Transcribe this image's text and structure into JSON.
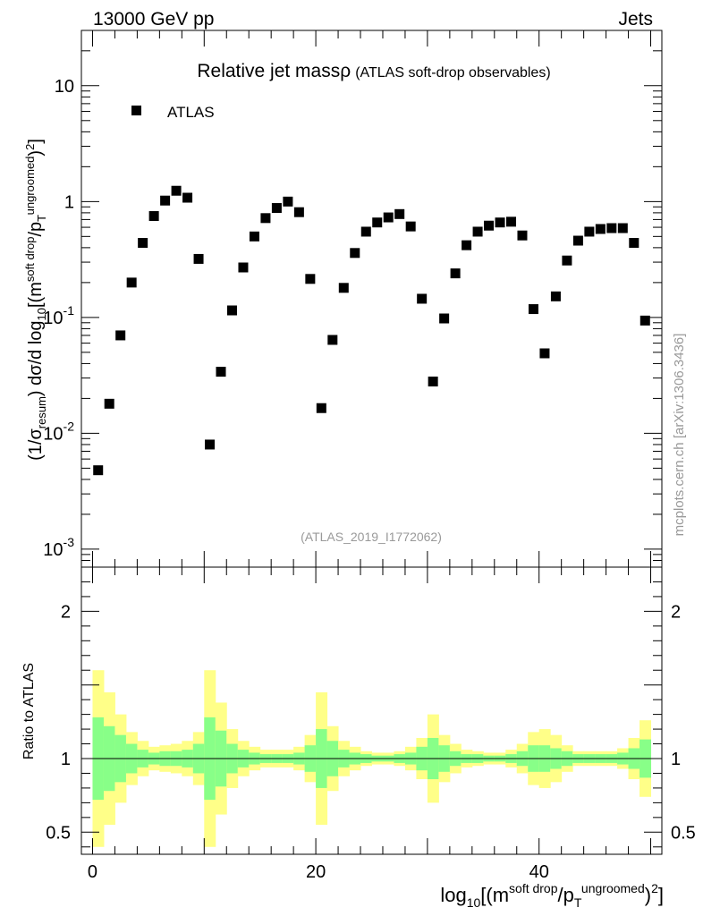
{
  "header": {
    "energy_label": "13000 GeV pp",
    "category_label": "Jets",
    "watermark": "mcplots.cern.ch [arXiv:1306.3436]"
  },
  "chart_data": [
    {
      "type": "scatter",
      "title": "Relative jet massρ",
      "subtitle": "(ATLAS soft-drop observables)",
      "analysis_id": "(ATLAS_2019_I1772062)",
      "xlabel": "log10[(m^{soft drop}/p_T^{ungroomed})^2]",
      "ylabel": "(1/σ_resum) dσ/d log10[(m^{soft drop}/p_T^{ungroomed})^2]",
      "yscale": "log",
      "xlim": [
        -1,
        51
      ],
      "ylim": [
        0.0007,
        30
      ],
      "ytick_labels": [
        "10^-3",
        "10^-2",
        "10^-1",
        "1",
        "10"
      ],
      "legend": {
        "placement": "top-left",
        "entries": [
          "ATLAS"
        ]
      },
      "series": [
        {
          "name": "ATLAS",
          "color": "#000000",
          "marker": "square",
          "x": [
            0.5,
            1.5,
            2.5,
            3.5,
            4.5,
            5.5,
            6.5,
            7.5,
            8.5,
            9.5,
            10.5,
            11.5,
            12.5,
            13.5,
            14.5,
            15.5,
            16.5,
            17.5,
            18.5,
            19.5,
            20.5,
            21.5,
            22.5,
            23.5,
            24.5,
            25.5,
            26.5,
            27.5,
            28.5,
            29.5,
            30.5,
            31.5,
            32.5,
            33.5,
            34.5,
            35.5,
            36.5,
            37.5,
            38.5,
            39.5,
            40.5,
            41.5,
            42.5,
            43.5,
            44.5,
            45.5,
            46.5,
            47.5,
            48.5,
            49.5
          ],
          "y": [
            0.0048,
            0.018,
            0.07,
            0.2,
            0.44,
            0.75,
            1.02,
            1.24,
            1.08,
            0.32,
            0.008,
            0.034,
            0.115,
            0.27,
            0.5,
            0.72,
            0.88,
            1.0,
            0.81,
            0.215,
            0.0165,
            0.064,
            0.18,
            0.36,
            0.55,
            0.66,
            0.73,
            0.78,
            0.61,
            0.145,
            0.028,
            0.098,
            0.24,
            0.42,
            0.55,
            0.62,
            0.66,
            0.67,
            0.51,
            0.118,
            0.049,
            0.152,
            0.31,
            0.46,
            0.55,
            0.58,
            0.59,
            0.59,
            0.44,
            0.094
          ]
        }
      ]
    },
    {
      "type": "bar",
      "ylabel": "Ratio to ATLAS",
      "ylim": [
        0.35,
        2.3
      ],
      "ytick_labels": [
        "0.5",
        "1",
        "2"
      ],
      "xtick_labels": [
        "0",
        "20",
        "40"
      ],
      "reference_line": 1,
      "band_colors": {
        "outer": "#ffff88",
        "inner": "#88ff88"
      },
      "bins_x": [
        0.5,
        1.5,
        2.5,
        3.5,
        4.5,
        5.5,
        6.5,
        7.5,
        8.5,
        9.5,
        10.5,
        11.5,
        12.5,
        13.5,
        14.5,
        15.5,
        16.5,
        17.5,
        18.5,
        19.5,
        20.5,
        21.5,
        22.5,
        23.5,
        24.5,
        25.5,
        26.5,
        27.5,
        28.5,
        29.5,
        30.5,
        31.5,
        32.5,
        33.5,
        34.5,
        35.5,
        36.5,
        37.5,
        38.5,
        39.5,
        40.5,
        41.5,
        42.5,
        43.5,
        44.5,
        45.5,
        46.5,
        47.5,
        48.5,
        49.5
      ],
      "inner_band": [
        0.28,
        0.22,
        0.16,
        0.1,
        0.06,
        0.04,
        0.05,
        0.05,
        0.06,
        0.1,
        0.28,
        0.19,
        0.1,
        0.06,
        0.04,
        0.03,
        0.03,
        0.03,
        0.04,
        0.09,
        0.2,
        0.12,
        0.06,
        0.04,
        0.03,
        0.02,
        0.02,
        0.03,
        0.04,
        0.08,
        0.14,
        0.09,
        0.05,
        0.03,
        0.03,
        0.02,
        0.02,
        0.03,
        0.05,
        0.09,
        0.09,
        0.07,
        0.05,
        0.03,
        0.03,
        0.03,
        0.03,
        0.04,
        0.07,
        0.13
      ],
      "outer_band": [
        0.6,
        0.45,
        0.3,
        0.18,
        0.12,
        0.08,
        0.09,
        0.1,
        0.12,
        0.18,
        0.6,
        0.38,
        0.2,
        0.12,
        0.08,
        0.06,
        0.06,
        0.06,
        0.08,
        0.16,
        0.45,
        0.22,
        0.12,
        0.08,
        0.05,
        0.04,
        0.04,
        0.05,
        0.08,
        0.14,
        0.3,
        0.16,
        0.1,
        0.06,
        0.05,
        0.04,
        0.04,
        0.06,
        0.1,
        0.18,
        0.2,
        0.16,
        0.09,
        0.05,
        0.05,
        0.05,
        0.05,
        0.07,
        0.14,
        0.26
      ]
    }
  ]
}
